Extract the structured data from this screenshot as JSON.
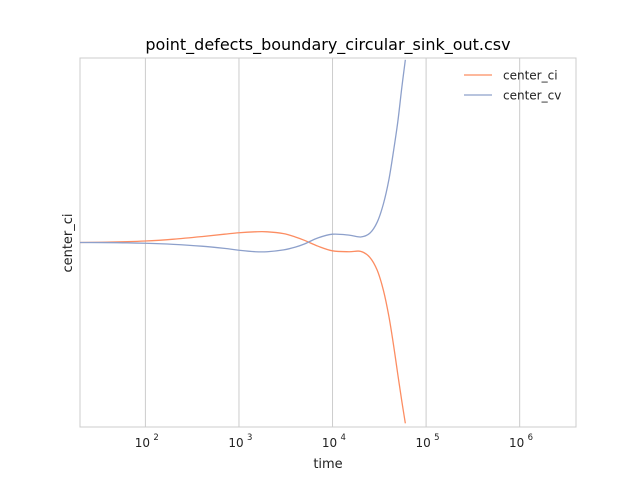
{
  "chart_data": {
    "type": "line",
    "title": "point_defects_boundary_circular_sink_out.csv",
    "xlabel": "time",
    "ylabel": "center_ci",
    "x_scale": "log",
    "xlim": [
      20,
      4000000
    ],
    "ylim": [
      -1.0,
      1.0
    ],
    "y_ticks_shown": false,
    "x_ticks": [
      {
        "base": "10",
        "exp": "2",
        "value": 100
      },
      {
        "base": "10",
        "exp": "3",
        "value": 1000
      },
      {
        "base": "10",
        "exp": "4",
        "value": 10000
      },
      {
        "base": "10",
        "exp": "5",
        "value": 100000
      },
      {
        "base": "10",
        "exp": "6",
        "value": 1000000
      }
    ],
    "grid": "x-major",
    "legend_position": "top-right",
    "series": [
      {
        "name": "center_ci",
        "color": "#fc8d62",
        "x": [
          20,
          50,
          100,
          200,
          400,
          700,
          1000,
          1500,
          2000,
          3000,
          4000,
          5000,
          7000,
          10000,
          15000,
          20000,
          25000,
          30000,
          35000,
          40000,
          45000,
          50000,
          55000,
          60000
        ],
        "y": [
          0.0,
          0.003,
          0.008,
          0.018,
          0.032,
          0.045,
          0.053,
          0.058,
          0.058,
          0.048,
          0.03,
          0.012,
          -0.02,
          -0.045,
          -0.05,
          -0.048,
          -0.08,
          -0.15,
          -0.26,
          -0.4,
          -0.56,
          -0.72,
          -0.86,
          -0.98
        ]
      },
      {
        "name": "center_cv",
        "color": "#8da0cb",
        "x": [
          20,
          50,
          100,
          200,
          400,
          700,
          1000,
          1500,
          2000,
          3000,
          4000,
          5000,
          7000,
          10000,
          15000,
          20000,
          25000,
          30000,
          35000,
          40000,
          45000,
          50000,
          55000,
          60000
        ],
        "y": [
          0.0,
          -0.001,
          -0.004,
          -0.01,
          -0.02,
          -0.032,
          -0.042,
          -0.05,
          -0.05,
          -0.04,
          -0.025,
          -0.008,
          0.025,
          0.045,
          0.04,
          0.03,
          0.05,
          0.11,
          0.21,
          0.34,
          0.5,
          0.66,
          0.84,
          0.99
        ]
      }
    ]
  }
}
